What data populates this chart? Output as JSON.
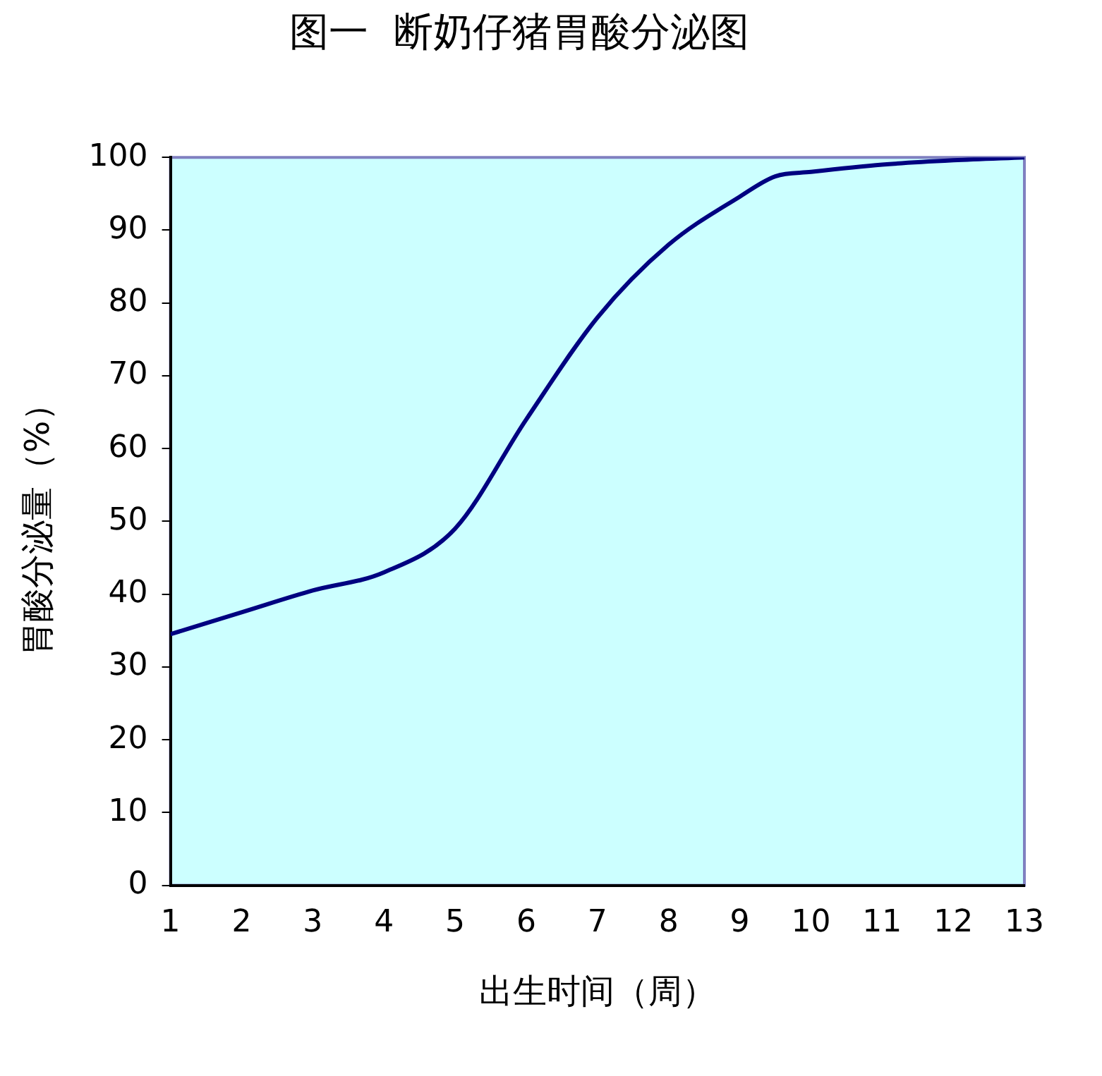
{
  "chart_data": {
    "type": "line",
    "title": "图一  断奶仔猪胃酸分泌图",
    "xlabel": "出生时间（周）",
    "ylabel": "胃酸分泌量（%）",
    "x": [
      1,
      2,
      3,
      4,
      5,
      6,
      7,
      8,
      9,
      9.5,
      10,
      11,
      12,
      13
    ],
    "series": [
      {
        "color": "#000080",
        "values": [
          34.5,
          37.5,
          40.5,
          43,
          49,
          64,
          78,
          88,
          94.6,
          97.4,
          98,
          99,
          99.6,
          100
        ]
      }
    ],
    "xlim": [
      1,
      13
    ],
    "xticks": [
      1,
      2,
      3,
      4,
      5,
      6,
      7,
      8,
      9,
      10,
      11,
      12,
      13
    ],
    "ylim": [
      0,
      100
    ],
    "yticks": [
      0,
      10,
      20,
      30,
      40,
      50,
      60,
      70,
      80,
      90,
      100
    ],
    "grid": false,
    "legend": false,
    "marker": "none",
    "line_style": "solid"
  }
}
